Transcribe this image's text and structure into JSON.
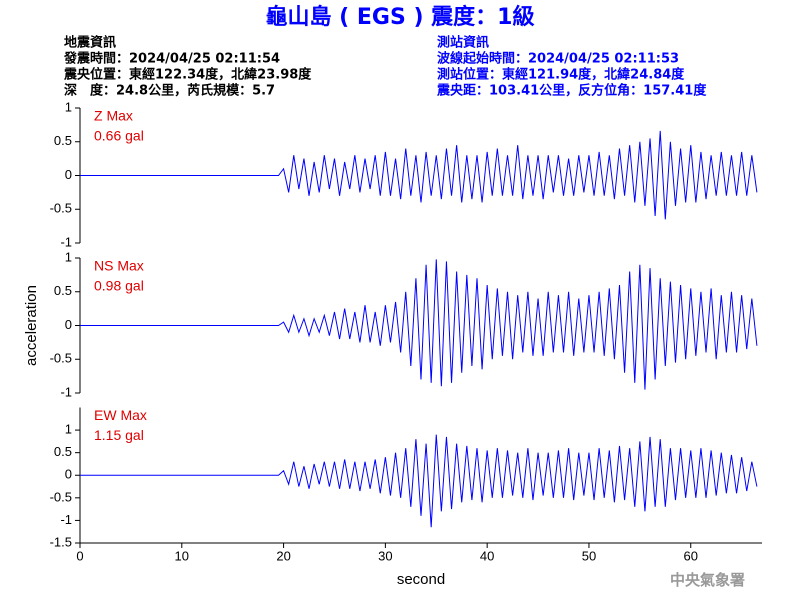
{
  "header": {
    "title": "龜山島 ( EGS ) 震度：1級",
    "left_info": [
      "地震資訊",
      "發震時間：2024/04/25 02:11:54",
      "震央位置：東經122.34度，北緯23.98度",
      "深　度：24.8公里，芮氏規模：5.7"
    ],
    "right_info": [
      "測站資訊",
      "波線起始時間：2024/04/25 02:11:53",
      "測站位置：東經121.94度，北緯24.84度",
      "震央距：103.41公里，反方位角：157.41度"
    ]
  },
  "footer": "中央氣象署",
  "chart_data": [
    {
      "type": "line",
      "annotations": [
        "Z Max",
        "0.66 gal"
      ],
      "xlim": [
        0,
        67
      ],
      "ylim": [
        -1,
        1
      ],
      "yticks": [
        -1,
        -0.5,
        0,
        0.5,
        1
      ],
      "x": [
        0,
        19.5,
        20,
        20.5,
        21,
        21.5,
        22,
        22.5,
        23,
        23.5,
        24,
        24.5,
        25,
        25.5,
        26,
        26.5,
        27,
        27.5,
        28,
        28.5,
        29,
        29.5,
        30,
        30.5,
        31,
        31.5,
        32,
        32.5,
        33,
        33.5,
        34,
        34.5,
        35,
        35.5,
        36,
        36.5,
        37,
        37.5,
        38,
        38.5,
        39,
        39.5,
        40,
        40.5,
        41,
        41.5,
        42,
        42.5,
        43,
        43.5,
        44,
        44.5,
        45,
        45.5,
        46,
        46.5,
        47,
        47.5,
        48,
        48.5,
        49,
        49.5,
        50,
        50.5,
        51,
        51.5,
        52,
        52.5,
        53,
        53.5,
        54,
        54.5,
        55,
        55.5,
        56,
        56.5,
        57,
        57.5,
        58,
        58.5,
        59,
        59.5,
        60,
        60.5,
        61,
        61.5,
        62,
        62.5,
        63,
        63.5,
        64,
        64.5,
        65,
        65.5,
        66,
        66.5
      ],
      "series": [
        {
          "color": "#0000ff",
          "values": [
            0,
            0,
            0.1,
            -0.25,
            0.3,
            -0.2,
            0.25,
            -0.3,
            0.2,
            -0.25,
            0.3,
            -0.2,
            0.25,
            -0.3,
            0.2,
            -0.2,
            0.3,
            -0.25,
            0.25,
            -0.2,
            0.3,
            -0.3,
            0.35,
            -0.3,
            0.25,
            -0.35,
            0.4,
            -0.3,
            0.3,
            -0.4,
            0.35,
            -0.3,
            0.3,
            -0.35,
            0.4,
            -0.3,
            0.45,
            -0.4,
            0.3,
            -0.35,
            0.3,
            -0.4,
            0.35,
            -0.3,
            0.4,
            -0.3,
            0.3,
            -0.3,
            0.45,
            -0.35,
            0.3,
            -0.3,
            0.3,
            -0.35,
            0.3,
            -0.25,
            0.3,
            -0.3,
            0.25,
            -0.3,
            0.3,
            -0.25,
            0.3,
            -0.3,
            0.35,
            -0.3,
            0.3,
            -0.35,
            0.4,
            -0.3,
            0.45,
            -0.4,
            0.5,
            -0.45,
            0.55,
            -0.6,
            0.66,
            -0.65,
            0.5,
            -0.45,
            0.4,
            -0.4,
            0.45,
            -0.4,
            0.35,
            -0.35,
            0.3,
            -0.3,
            0.35,
            -0.3,
            0.3,
            -0.3,
            0.35,
            -0.3,
            0.3,
            -0.25
          ]
        }
      ]
    },
    {
      "type": "line",
      "annotations": [
        "NS Max",
        "0.98 gal"
      ],
      "ylabel": "acceleration",
      "xlim": [
        0,
        67
      ],
      "ylim": [
        -1,
        1
      ],
      "yticks": [
        -1,
        -0.5,
        0,
        0.5,
        1
      ],
      "x": [
        0,
        19.5,
        20,
        20.5,
        21,
        21.5,
        22,
        22.5,
        23,
        23.5,
        24,
        24.5,
        25,
        25.5,
        26,
        26.5,
        27,
        27.5,
        28,
        28.5,
        29,
        29.5,
        30,
        30.5,
        31,
        31.5,
        32,
        32.5,
        33,
        33.5,
        34,
        34.5,
        35,
        35.5,
        36,
        36.5,
        37,
        37.5,
        38,
        38.5,
        39,
        39.5,
        40,
        40.5,
        41,
        41.5,
        42,
        42.5,
        43,
        43.5,
        44,
        44.5,
        45,
        45.5,
        46,
        46.5,
        47,
        47.5,
        48,
        48.5,
        49,
        49.5,
        50,
        50.5,
        51,
        51.5,
        52,
        52.5,
        53,
        53.5,
        54,
        54.5,
        55,
        55.5,
        56,
        56.5,
        57,
        57.5,
        58,
        58.5,
        59,
        59.5,
        60,
        60.5,
        61,
        61.5,
        62,
        62.5,
        63,
        63.5,
        64,
        64.5,
        65,
        65.5,
        66,
        66.5
      ],
      "series": [
        {
          "color": "#0000ff",
          "values": [
            0,
            0,
            0.05,
            -0.1,
            0.15,
            -0.1,
            0.1,
            -0.15,
            0.1,
            -0.1,
            0.15,
            -0.15,
            0.2,
            -0.2,
            0.25,
            -0.2,
            0.2,
            -0.25,
            0.3,
            -0.25,
            0.2,
            -0.3,
            0.3,
            -0.25,
            0.35,
            -0.4,
            0.5,
            -0.6,
            0.7,
            -0.8,
            0.9,
            -0.85,
            0.98,
            -0.9,
            0.95,
            -0.85,
            0.8,
            -0.7,
            0.75,
            -0.6,
            0.7,
            -0.65,
            0.6,
            -0.5,
            0.55,
            -0.45,
            0.5,
            -0.5,
            0.45,
            -0.4,
            0.5,
            -0.45,
            0.4,
            -0.45,
            0.5,
            -0.4,
            0.45,
            -0.4,
            0.5,
            -0.45,
            0.4,
            -0.4,
            0.45,
            -0.4,
            0.5,
            -0.45,
            0.55,
            -0.5,
            0.6,
            -0.7,
            0.8,
            -0.85,
            0.9,
            -0.95,
            0.85,
            -0.8,
            0.7,
            -0.6,
            0.65,
            -0.55,
            0.6,
            -0.5,
            0.55,
            -0.45,
            0.5,
            -0.4,
            0.55,
            -0.5,
            0.45,
            -0.4,
            0.5,
            -0.4,
            0.45,
            -0.35,
            0.4,
            -0.3
          ]
        }
      ]
    },
    {
      "type": "line",
      "annotations": [
        "EW Max",
        "1.15 gal"
      ],
      "xlabel": "second",
      "xlim": [
        0,
        67
      ],
      "xticks": [
        0,
        10,
        20,
        30,
        40,
        50,
        60
      ],
      "ylim": [
        -1.5,
        1.5
      ],
      "yticks": [
        -1.5,
        -1,
        -0.5,
        0,
        0.5,
        1
      ],
      "x": [
        0,
        19.5,
        20,
        20.5,
        21,
        21.5,
        22,
        22.5,
        23,
        23.5,
        24,
        24.5,
        25,
        25.5,
        26,
        26.5,
        27,
        27.5,
        28,
        28.5,
        29,
        29.5,
        30,
        30.5,
        31,
        31.5,
        32,
        32.5,
        33,
        33.5,
        34,
        34.5,
        35,
        35.5,
        36,
        36.5,
        37,
        37.5,
        38,
        38.5,
        39,
        39.5,
        40,
        40.5,
        41,
        41.5,
        42,
        42.5,
        43,
        43.5,
        44,
        44.5,
        45,
        45.5,
        46,
        46.5,
        47,
        47.5,
        48,
        48.5,
        49,
        49.5,
        50,
        50.5,
        51,
        51.5,
        52,
        52.5,
        53,
        53.5,
        54,
        54.5,
        55,
        55.5,
        56,
        56.5,
        57,
        57.5,
        58,
        58.5,
        59,
        59.5,
        60,
        60.5,
        61,
        61.5,
        62,
        62.5,
        63,
        63.5,
        64,
        64.5,
        65,
        65.5,
        66,
        66.5
      ],
      "series": [
        {
          "color": "#0000ff",
          "values": [
            0,
            0,
            0.1,
            -0.2,
            0.3,
            -0.25,
            0.2,
            -0.3,
            0.25,
            -0.2,
            0.3,
            -0.25,
            0.3,
            -0.3,
            0.35,
            -0.3,
            0.3,
            -0.35,
            0.3,
            -0.3,
            0.35,
            -0.4,
            0.4,
            -0.45,
            0.5,
            -0.5,
            0.6,
            -0.7,
            0.8,
            -0.9,
            0.7,
            -1.15,
            0.9,
            -0.8,
            0.85,
            -0.75,
            0.7,
            -0.6,
            0.65,
            -0.55,
            0.6,
            -0.6,
            0.55,
            -0.5,
            0.6,
            -0.5,
            0.55,
            -0.45,
            0.5,
            -0.5,
            0.6,
            -0.55,
            0.5,
            -0.45,
            0.5,
            -0.5,
            0.55,
            -0.5,
            0.6,
            -0.55,
            0.5,
            -0.45,
            0.5,
            -0.55,
            0.6,
            -0.5,
            0.55,
            -0.6,
            0.65,
            -0.55,
            0.6,
            -0.7,
            0.75,
            -0.8,
            0.85,
            -0.7,
            0.8,
            -0.7,
            0.6,
            -0.55,
            0.6,
            -0.5,
            0.55,
            -0.5,
            0.6,
            -0.5,
            0.55,
            -0.45,
            0.5,
            -0.4,
            0.45,
            -0.4,
            0.4,
            -0.35,
            0.3,
            -0.25
          ]
        }
      ]
    }
  ]
}
